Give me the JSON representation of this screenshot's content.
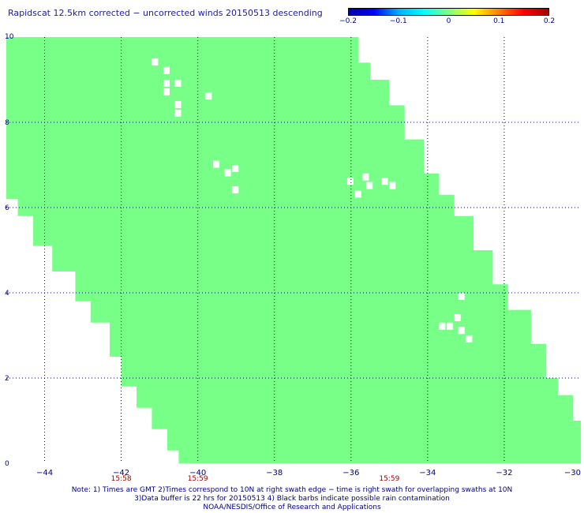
{
  "title": "Rapidscat 12.5km corrected − uncorrected winds 20150513 descending",
  "colorbar": {
    "labels": [
      "−0.2",
      "−0.1",
      "0",
      "0.1",
      "0.2"
    ],
    "values": [
      -0.2,
      -0.1,
      0,
      0.1,
      0.2
    ],
    "colors": [
      "#0000a0",
      "#0000ff",
      "#00b0ff",
      "#00ffff",
      "#80ff80",
      "#ffff00",
      "#ff8000",
      "#ff0000",
      "#a00000"
    ]
  },
  "map": {
    "lon_range": [
      -45,
      -30
    ],
    "lat_range": [
      0,
      10
    ],
    "lon_ticks": [
      {
        "value": -44,
        "label": "−44"
      },
      {
        "value": -42,
        "label": "−42"
      },
      {
        "value": -40,
        "label": "−40"
      },
      {
        "value": -38,
        "label": "−38"
      },
      {
        "value": -36,
        "label": "−36"
      },
      {
        "value": -34,
        "label": "−34"
      },
      {
        "value": -32,
        "label": "−32"
      },
      {
        "value": -30,
        "label": "−30"
      }
    ],
    "lat_ticks": [
      {
        "value": 0,
        "label": "0"
      },
      {
        "value": 2,
        "label": "2"
      },
      {
        "value": 4,
        "label": "4"
      },
      {
        "value": 6,
        "label": "6"
      },
      {
        "value": 8,
        "label": "8"
      },
      {
        "value": 10,
        "label": "10"
      }
    ],
    "time_labels": [
      {
        "lon": -42,
        "text": "15:58"
      },
      {
        "lon": -40,
        "text": "15:59"
      },
      {
        "lon": -35,
        "text": "15:59"
      }
    ],
    "swath_color": "#77ff88",
    "swath_value": 0,
    "swath": {
      "left_edge": [
        [
          -45,
          6.5
        ],
        [
          -44.7,
          6.2
        ],
        [
          -44.3,
          5.8
        ],
        [
          -43.8,
          5.1
        ],
        [
          -43.2,
          4.5
        ],
        [
          -42.8,
          3.8
        ],
        [
          -42.3,
          3.3
        ],
        [
          -42.0,
          2.5
        ],
        [
          -41.6,
          1.8
        ],
        [
          -41.2,
          1.3
        ],
        [
          -40.8,
          0.8
        ],
        [
          -40.5,
          0.3
        ],
        [
          -40.3,
          0.0
        ]
      ],
      "right_edge": [
        [
          -36.2,
          10
        ],
        [
          -35.8,
          9.4
        ],
        [
          -35.5,
          9.0
        ],
        [
          -35.0,
          8.4
        ],
        [
          -34.6,
          7.6
        ],
        [
          -34.1,
          6.8
        ],
        [
          -33.7,
          6.3
        ],
        [
          -33.3,
          5.8
        ],
        [
          -32.8,
          5.0
        ],
        [
          -32.3,
          4.2
        ],
        [
          -31.9,
          3.6
        ],
        [
          -31.3,
          2.8
        ],
        [
          -30.9,
          2.0
        ],
        [
          -30.6,
          1.6
        ],
        [
          -30.2,
          1.0
        ],
        [
          -30.0,
          0.7
        ],
        [
          -30.0,
          0.0
        ]
      ]
    },
    "gaps": [
      [
        -41.2,
        9.5
      ],
      [
        -40.9,
        9.3
      ],
      [
        -40.9,
        9.0
      ],
      [
        -40.6,
        9.0
      ],
      [
        -40.9,
        8.8
      ],
      [
        -40.6,
        8.5
      ],
      [
        -40.6,
        8.3
      ],
      [
        -39.8,
        8.7
      ],
      [
        -39.6,
        7.1
      ],
      [
        -39.3,
        6.9
      ],
      [
        -39.1,
        7.0
      ],
      [
        -39.1,
        6.5
      ],
      [
        -36.1,
        6.7
      ],
      [
        -35.9,
        6.4
      ],
      [
        -35.7,
        6.8
      ],
      [
        -35.6,
        6.6
      ],
      [
        -35.2,
        6.7
      ],
      [
        -35.0,
        6.6
      ],
      [
        -33.7,
        3.3
      ],
      [
        -33.5,
        3.3
      ],
      [
        -33.3,
        3.5
      ],
      [
        -33.2,
        3.2
      ],
      [
        -33.0,
        3.0
      ],
      [
        -33.2,
        4.0
      ]
    ]
  },
  "notes": [
    "Note: 1) Times are GMT 2)Times correspond to 10N at right swath edge − time is right swath for overlapping swaths at 10N",
    "3)Data buffer is 22 hrs for 20150513 4) Black barbs indicate possible rain contamination",
    "NOAA/NESDIS/Office of Research and Applications"
  ]
}
